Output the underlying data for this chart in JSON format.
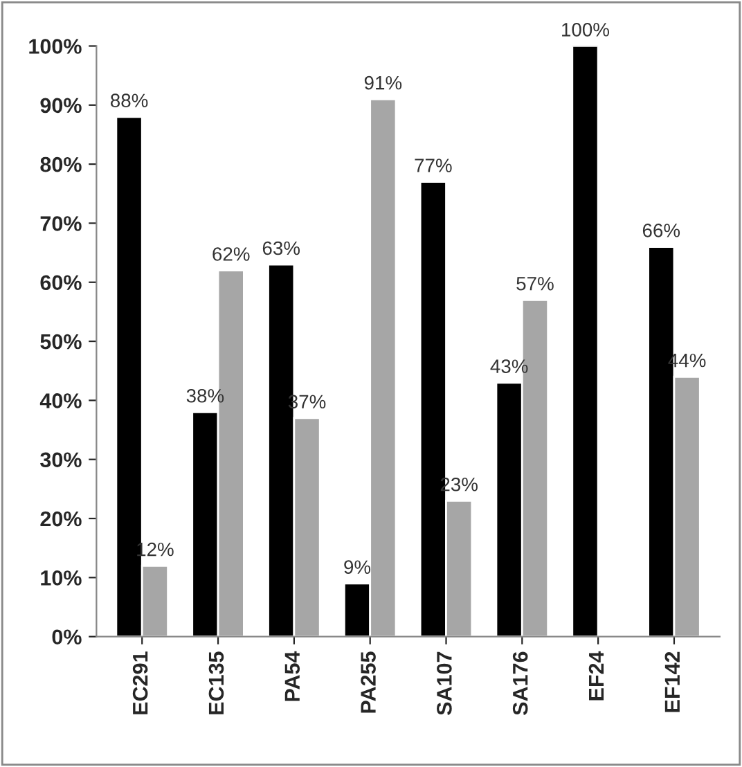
{
  "chart_data": {
    "type": "bar",
    "categories": [
      "EC291",
      "EC135",
      "PA54",
      "PA255",
      "SA107",
      "SA176",
      "EF24",
      "EF142"
    ],
    "series": [
      {
        "color": "#000000",
        "values": [
          88,
          38,
          63,
          9,
          77,
          43,
          100,
          66
        ],
        "value_labels": [
          "88%",
          "38%",
          "63%",
          "9%",
          "77%",
          "43%",
          "100%",
          "66%"
        ]
      },
      {
        "color": "#a6a6a6",
        "values": [
          12,
          62,
          37,
          91,
          23,
          57,
          null,
          44
        ],
        "value_labels": [
          "12%",
          "62%",
          "37%",
          "91%",
          "23%",
          "57%",
          null,
          "44%"
        ]
      }
    ],
    "ylim": [
      0,
      100
    ],
    "yticks": [
      {
        "value": 0,
        "label": "0%"
      },
      {
        "value": 10,
        "label": "10%"
      },
      {
        "value": 20,
        "label": "20%"
      },
      {
        "value": 30,
        "label": "30%"
      },
      {
        "value": 40,
        "label": "40%"
      },
      {
        "value": 50,
        "label": "50%"
      },
      {
        "value": 60,
        "label": "60%"
      },
      {
        "value": 70,
        "label": "70%"
      },
      {
        "value": 80,
        "label": "80%"
      },
      {
        "value": 90,
        "label": "90%"
      },
      {
        "value": 100,
        "label": "100%"
      }
    ],
    "grid": false,
    "legend": false
  }
}
